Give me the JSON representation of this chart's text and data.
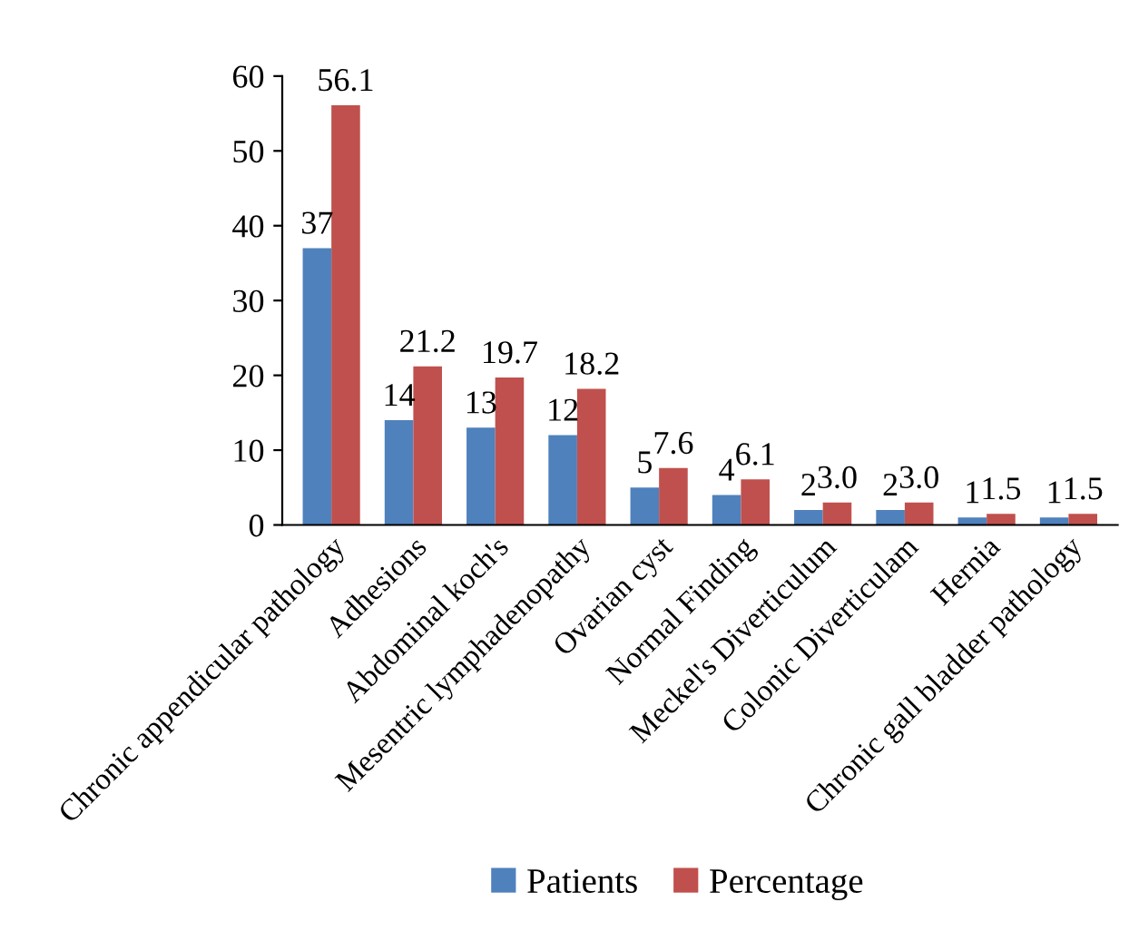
{
  "chart_data": {
    "type": "bar",
    "categories": [
      "Chronic appendicular pathology",
      "Adhesions",
      "Abdominal koch's",
      "Mesentric lymphadenopathy",
      "Ovarian cyst",
      "Normal Finding",
      "Meckel's Diverticulum",
      "Colonic Diverticulam",
      "Hernia",
      "Chronic gall bladder pathology"
    ],
    "series": [
      {
        "name": "Patients",
        "color": "#4f81bd",
        "values": [
          37,
          14,
          13,
          12,
          5,
          4,
          2,
          2,
          1,
          1
        ],
        "value_labels": [
          "37",
          "14",
          "13",
          "12",
          "5",
          "4",
          "2",
          "2",
          "1",
          "1"
        ]
      },
      {
        "name": "Percentage",
        "color": "#c0504d",
        "values": [
          56.1,
          21.2,
          19.7,
          18.2,
          7.6,
          6.1,
          3.0,
          3.0,
          1.5,
          1.5
        ],
        "value_labels": [
          "56.1",
          "21.2",
          "19.7",
          "18.2",
          "7.6",
          "6.1",
          "3.0",
          "3.0",
          "1.5",
          "1.5"
        ]
      }
    ],
    "ylim": [
      0,
      60
    ],
    "yticks": [
      0,
      10,
      20,
      30,
      40,
      50,
      60
    ],
    "grid": false,
    "legend": "bottom"
  }
}
